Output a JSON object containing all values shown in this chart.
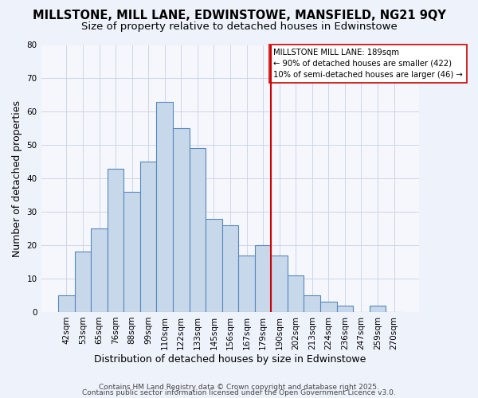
{
  "title": "MILLSTONE, MILL LANE, EDWINSTOWE, MANSFIELD, NG21 9QY",
  "subtitle": "Size of property relative to detached houses in Edwinstowe",
  "xlabel": "Distribution of detached houses by size in Edwinstowe",
  "ylabel": "Number of detached properties",
  "bin_labels": [
    "42sqm",
    "53sqm",
    "65sqm",
    "76sqm",
    "88sqm",
    "99sqm",
    "110sqm",
    "122sqm",
    "133sqm",
    "145sqm",
    "156sqm",
    "167sqm",
    "179sqm",
    "190sqm",
    "202sqm",
    "213sqm",
    "224sqm",
    "236sqm",
    "247sqm",
    "259sqm",
    "270sqm"
  ],
  "bar_values": [
    5,
    18,
    25,
    43,
    36,
    45,
    63,
    55,
    49,
    28,
    26,
    17,
    20,
    17,
    11,
    5,
    3,
    2,
    0,
    2,
    0
  ],
  "bar_color": "#c8d8eb",
  "bar_edge_color": "#5588bb",
  "vline_color": "#cc0000",
  "ylim": [
    0,
    80
  ],
  "yticks": [
    0,
    10,
    20,
    30,
    40,
    50,
    60,
    70,
    80
  ],
  "annotation_title": "MILLSTONE MILL LANE: 189sqm",
  "annotation_line1": "← 90% of detached houses are smaller (422)",
  "annotation_line2": "10% of semi-detached houses are larger (46) →",
  "footer1": "Contains HM Land Registry data © Crown copyright and database right 2025.",
  "footer2": "Contains public sector information licensed under the Open Government Licence v3.0.",
  "bg_color": "#eef2fb",
  "plot_bg_color": "#f5f7fc",
  "grid_color": "#cdd5e8",
  "title_fontsize": 10.5,
  "subtitle_fontsize": 9.5,
  "axis_label_fontsize": 9,
  "tick_fontsize": 7.5,
  "footer_fontsize": 6.5,
  "vline_index": 13
}
